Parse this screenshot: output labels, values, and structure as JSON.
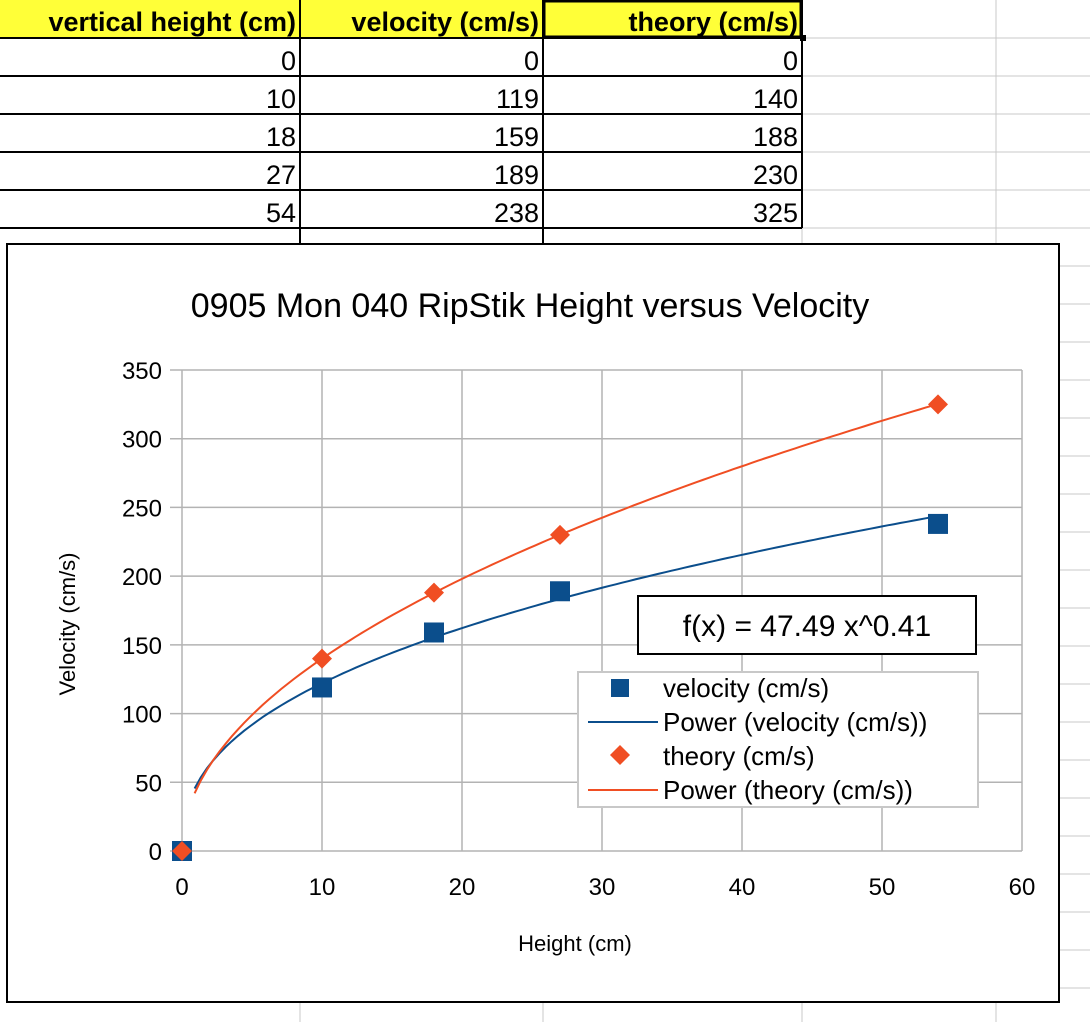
{
  "spreadsheet": {
    "headers": [
      "vertical height (cm)",
      "velocity (cm/s)",
      "theory (cm/s)"
    ],
    "rows": [
      [
        "0",
        "0",
        "0"
      ],
      [
        "10",
        "119",
        "140"
      ],
      [
        "18",
        "159",
        "188"
      ],
      [
        "27",
        "189",
        "230"
      ],
      [
        "54",
        "238",
        "325"
      ]
    ],
    "header_fill": "#ffff38"
  },
  "chart_data": {
    "type": "scatter",
    "title": "0905 Mon 040 RipStik Height versus Velocity",
    "xlabel": "Height (cm)",
    "ylabel": "Velocity  (cm/s)",
    "xlim": [
      0,
      60
    ],
    "ylim": [
      0,
      350
    ],
    "x_ticks": [
      0,
      10,
      20,
      30,
      40,
      50,
      60
    ],
    "y_ticks": [
      0,
      50,
      100,
      150,
      200,
      250,
      300,
      350
    ],
    "grid": true,
    "legend_position": "right",
    "series": [
      {
        "name": "velocity (cm/s)",
        "marker": "square",
        "color": "#0b4e8c",
        "points": [
          [
            0,
            0
          ],
          [
            10,
            119
          ],
          [
            18,
            159
          ],
          [
            27,
            189
          ],
          [
            54,
            238
          ]
        ],
        "trendline": {
          "name": "Power (velocity (cm/s))",
          "kind": "power",
          "a": 47.49,
          "b": 0.41,
          "color": "#0b4e8c"
        }
      },
      {
        "name": "theory (cm/s)",
        "marker": "diamond",
        "color": "#f04e23",
        "points": [
          [
            0,
            0
          ],
          [
            10,
            140
          ],
          [
            18,
            188
          ],
          [
            27,
            230
          ],
          [
            54,
            325
          ]
        ],
        "trendline": {
          "name": "Power (theory (cm/s))",
          "kind": "power",
          "a": 44.27,
          "b": 0.5,
          "color": "#f04e23"
        }
      }
    ],
    "equation_label": "f(x) = 47.49 x^0.41"
  }
}
